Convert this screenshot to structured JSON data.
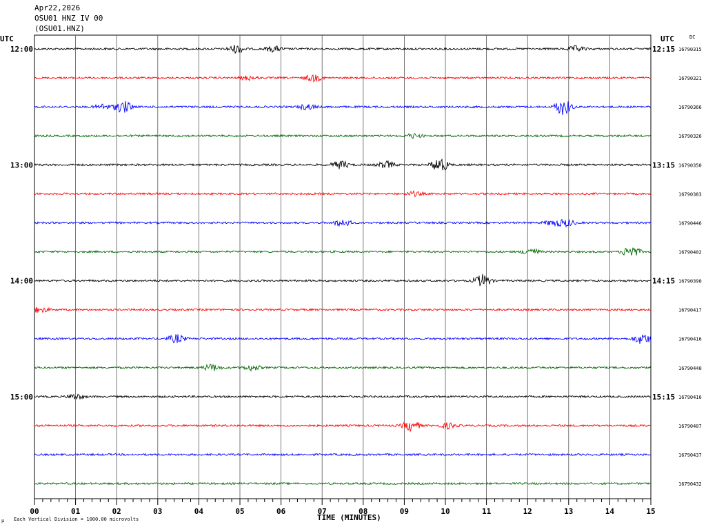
{
  "header": {
    "date": "Apr22,2026",
    "station": "OSU01 HNZ IV 00",
    "channel_code": "(OSU01.HNZ)"
  },
  "labels": {
    "utc_left": "UTC",
    "utc_right": "UTC",
    "dc": "DC",
    "footer_note": "Each Vertical Division = 1000.00 microvolts",
    "corner_mark": "µ"
  },
  "colors": {
    "trace_cycle": [
      "#000000",
      "#ff0000",
      "#0000ff",
      "#006600"
    ],
    "grid": "#000000"
  },
  "chart_data": {
    "type": "line",
    "title": "",
    "xlabel": "TIME (MINUTES)",
    "ylabel": "",
    "xlim": [
      0,
      15
    ],
    "x_ticks": [
      "00",
      "01",
      "02",
      "03",
      "04",
      "05",
      "06",
      "07",
      "08",
      "09",
      "10",
      "11",
      "12",
      "13",
      "14",
      "15"
    ],
    "hour_labels_left": [
      {
        "row": 0,
        "text": "12:00"
      },
      {
        "row": 4,
        "text": "13:00"
      },
      {
        "row": 8,
        "text": "14:00"
      },
      {
        "row": 12,
        "text": "15:00"
      }
    ],
    "hour_labels_right": [
      {
        "row": 0,
        "text": "12:15"
      },
      {
        "row": 4,
        "text": "13:15"
      },
      {
        "row": 8,
        "text": "14:15"
      },
      {
        "row": 12,
        "text": "15:15"
      }
    ],
    "rows": [
      {
        "dc": "16790315"
      },
      {
        "dc": "16790321"
      },
      {
        "dc": "16790366"
      },
      {
        "dc": "16790326"
      },
      {
        "dc": "16790350"
      },
      {
        "dc": "16790383"
      },
      {
        "dc": "16790446"
      },
      {
        "dc": "16790402"
      },
      {
        "dc": "16790390"
      },
      {
        "dc": "16790417"
      },
      {
        "dc": "16790416"
      },
      {
        "dc": "16790440"
      },
      {
        "dc": "16790416"
      },
      {
        "dc": "16790407"
      },
      {
        "dc": "16790437"
      },
      {
        "dc": "16790432"
      }
    ]
  }
}
